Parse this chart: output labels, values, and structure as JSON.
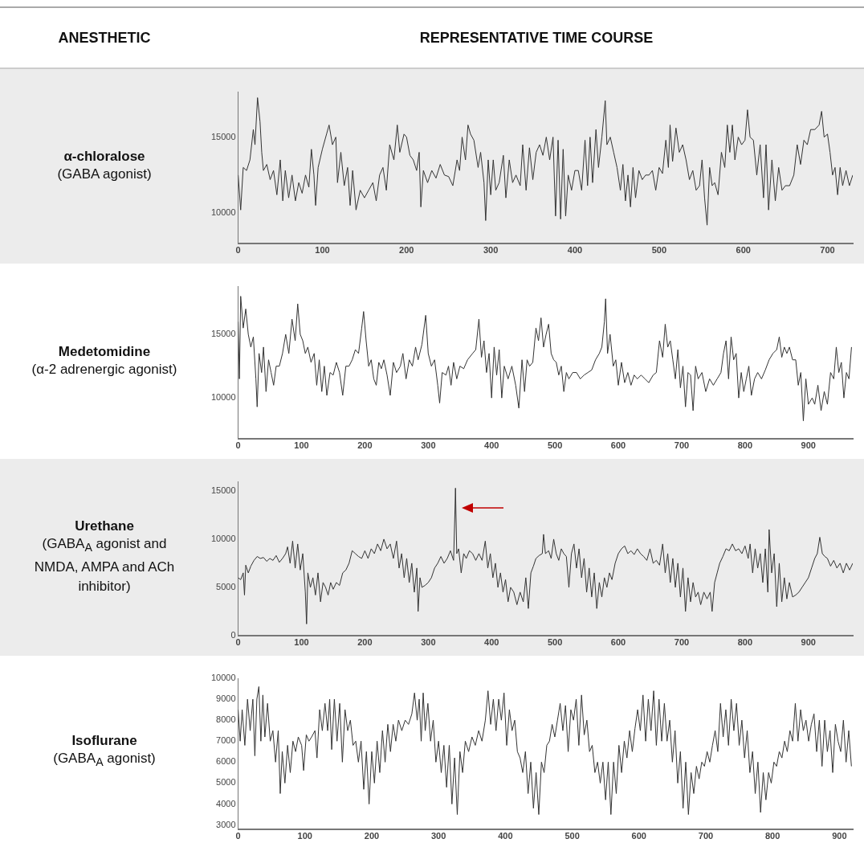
{
  "chart_data": [
    {
      "type": "line",
      "title": "α-chloralose",
      "subtitle": "(GABA agonist)",
      "annotations": [
        "ANESTHETIC",
        "REPRESENTATIVE TIME COURSE"
      ],
      "color": "#333333",
      "xlim": [
        0,
        730
      ],
      "xticks": [
        0,
        100,
        200,
        300,
        400,
        500,
        600,
        700
      ],
      "ylim": [
        8000,
        18000
      ],
      "yticks": [
        10000,
        15000
      ],
      "x": [
        0,
        3,
        6,
        10,
        14,
        18,
        20,
        23,
        26,
        28,
        30,
        34,
        38,
        42,
        46,
        50,
        53,
        56,
        60,
        64,
        68,
        72,
        76,
        80,
        84,
        87,
        90,
        92,
        95,
        100,
        105,
        108,
        112,
        116,
        118,
        122,
        126,
        130,
        133,
        136,
        140,
        145,
        150,
        155,
        160,
        164,
        168,
        172,
        176,
        180,
        185,
        189,
        192,
        197,
        200,
        204,
        208,
        212,
        215,
        217,
        220,
        225,
        230,
        235,
        240,
        245,
        250,
        255,
        260,
        263,
        266,
        270,
        273,
        276,
        280,
        285,
        288,
        292,
        294,
        297,
        300,
        303,
        306,
        310,
        315,
        318,
        322,
        326,
        330,
        335,
        338,
        342,
        346,
        350,
        354,
        358,
        362,
        366,
        370,
        374,
        377,
        380,
        383,
        386,
        389,
        392,
        396,
        400,
        404,
        408,
        412,
        415,
        418,
        421,
        425,
        428,
        432,
        436,
        438,
        442,
        446,
        450,
        454,
        457,
        460,
        463,
        466,
        469,
        472,
        476,
        480,
        484,
        488,
        492,
        496,
        500,
        504,
        508,
        511,
        513,
        516,
        520,
        524,
        528,
        532,
        536,
        540,
        544,
        548,
        551,
        554,
        557,
        560,
        563,
        566,
        570,
        574,
        578,
        581,
        584,
        587,
        590,
        594,
        598,
        602,
        605,
        608,
        612,
        616,
        620,
        624,
        627,
        630,
        634,
        638,
        642,
        646,
        650,
        655,
        660,
        664,
        668,
        672,
        676,
        680,
        685,
        690,
        693,
        696,
        700,
        703,
        706,
        709,
        712,
        715,
        718,
        722,
        726,
        730
      ],
      "values": [
        12500,
        10200,
        13000,
        12800,
        13500,
        15500,
        14500,
        17600,
        16000,
        14000,
        12800,
        13200,
        12200,
        12800,
        11200,
        13500,
        10800,
        12800,
        11000,
        12500,
        10800,
        12000,
        11300,
        12500,
        11700,
        14200,
        12500,
        10500,
        13000,
        14200,
        15200,
        15800,
        14500,
        15000,
        12000,
        14000,
        11800,
        13000,
        10500,
        12800,
        10200,
        11500,
        11000,
        11500,
        12000,
        10800,
        12500,
        13000,
        11500,
        14500,
        13500,
        15800,
        14000,
        15200,
        15000,
        13800,
        13500,
        12800,
        14000,
        10400,
        12800,
        12000,
        12800,
        12300,
        13200,
        12500,
        12400,
        11800,
        13500,
        12800,
        15000,
        13500,
        15800,
        15200,
        14800,
        13000,
        14000,
        12000,
        9500,
        13500,
        11200,
        13500,
        11500,
        12000,
        13800,
        11000,
        13500,
        12000,
        12500,
        11800,
        14500,
        11500,
        14300,
        12200,
        14000,
        14500,
        13800,
        15000,
        13500,
        15000,
        9800,
        14800,
        9600,
        14200,
        9800,
        12500,
        11500,
        12800,
        12800,
        11500,
        14800,
        11800,
        15000,
        12000,
        15500,
        13000,
        15000,
        17400,
        14500,
        15000,
        14000,
        13000,
        11500,
        13200,
        10800,
        12500,
        10400,
        13000,
        11000,
        12800,
        12200,
        12500,
        12500,
        12800,
        11500,
        13000,
        12600,
        14800,
        13000,
        15800,
        13400,
        15600,
        14000,
        14500,
        13500,
        12200,
        12800,
        11500,
        11800,
        13500,
        11000,
        9200,
        13000,
        11800,
        12000,
        11200,
        14000,
        13000,
        15800,
        14000,
        15800,
        13500,
        15000,
        14500,
        14800,
        16800,
        15000,
        14800,
        12500,
        14500,
        11000,
        14500,
        10200,
        13500,
        10800,
        13000,
        11500,
        11800,
        11800,
        12500,
        14500,
        13200,
        14800,
        14500,
        15500,
        15500,
        15800,
        16700,
        15000,
        15200,
        14000,
        12500,
        13000,
        11200,
        13000,
        11800,
        12800,
        11800,
        12500
      ]
    },
    {
      "type": "line",
      "title": "Medetomidine",
      "subtitle": "(α-2 adrenergic agonist)",
      "color": "#333333",
      "xlim": [
        0,
        970
      ],
      "xticks": [
        0,
        100,
        200,
        300,
        400,
        500,
        600,
        700,
        800,
        900
      ],
      "ylim": [
        6800,
        18800
      ],
      "yticks": [
        10000,
        15000
      ],
      "x": [
        0,
        2,
        4,
        8,
        12,
        16,
        20,
        24,
        28,
        30,
        33,
        37,
        40,
        44,
        48,
        52,
        56,
        60,
        65,
        70,
        75,
        80,
        85,
        90,
        94,
        98,
        102,
        106,
        110,
        115,
        120,
        124,
        128,
        132,
        136,
        140,
        145,
        150,
        155,
        160,
        165,
        170,
        175,
        180,
        185,
        190,
        195,
        198,
        202,
        206,
        210,
        214,
        218,
        222,
        226,
        230,
        235,
        240,
        245,
        250,
        256,
        260,
        265,
        270,
        275,
        280,
        284,
        290,
        296,
        300,
        305,
        310,
        315,
        318,
        322,
        328,
        332,
        336,
        340,
        345,
        350,
        356,
        362,
        370,
        375,
        380,
        384,
        388,
        392,
        396,
        400,
        404,
        408,
        412,
        416,
        420,
        426,
        432,
        438,
        443,
        448,
        452,
        456,
        460,
        465,
        470,
        474,
        478,
        482,
        486,
        490,
        494,
        498,
        502,
        506,
        510,
        514,
        518,
        522,
        528,
        534,
        540,
        546,
        552,
        558,
        564,
        570,
        574,
        578,
        580,
        583,
        587,
        592,
        596,
        600,
        605,
        610,
        615,
        620,
        625,
        630,
        636,
        642,
        648,
        655,
        660,
        665,
        670,
        674,
        678,
        682,
        686,
        690,
        694,
        698,
        702,
        706,
        710,
        714,
        718,
        722,
        726,
        732,
        738,
        744,
        750,
        756,
        762,
        766,
        770,
        774,
        778,
        782,
        786,
        790,
        794,
        798,
        802,
        806,
        810,
        815,
        820,
        826,
        832,
        838,
        844,
        850,
        854,
        858,
        862,
        866,
        870,
        875,
        880,
        884,
        888,
        892,
        896,
        900,
        906,
        910,
        915,
        920,
        925,
        930,
        935,
        940,
        944,
        948,
        952,
        956,
        960,
        964,
        968
      ],
      "values": [
        16000,
        11500,
        18000,
        15500,
        17000,
        15000,
        14000,
        14800,
        11500,
        9300,
        13500,
        12000,
        14000,
        10500,
        13000,
        12000,
        11000,
        12500,
        12500,
        13500,
        15000,
        13500,
        16200,
        14500,
        17400,
        15000,
        14500,
        13500,
        14000,
        12800,
        13500,
        11000,
        13000,
        10500,
        12500,
        10200,
        12000,
        11800,
        12800,
        12000,
        10200,
        12500,
        12500,
        13000,
        13800,
        13500,
        15500,
        16800,
        14500,
        12500,
        13000,
        11500,
        11000,
        12800,
        12300,
        13000,
        11800,
        10200,
        12800,
        12000,
        12500,
        13500,
        11500,
        13000,
        12500,
        14000,
        13000,
        14200,
        16500,
        13500,
        12500,
        13000,
        11000,
        9600,
        12000,
        11800,
        12500,
        11000,
        12800,
        11500,
        12500,
        12300,
        13000,
        13500,
        13800,
        16200,
        13200,
        14500,
        12000,
        13500,
        10000,
        14000,
        11800,
        13800,
        10000,
        12500,
        11500,
        12500,
        11000,
        9200,
        13000,
        10500,
        13000,
        12500,
        12800,
        15500,
        14500,
        16300,
        14000,
        15000,
        15800,
        13500,
        13000,
        12800,
        11800,
        12500,
        10500,
        12000,
        11500,
        12000,
        12000,
        11500,
        11800,
        12000,
        12200,
        13000,
        13500,
        14000,
        16000,
        17800,
        13500,
        15000,
        12500,
        13000,
        11000,
        12800,
        11200,
        12000,
        11000,
        11800,
        11500,
        11800,
        11500,
        11200,
        11800,
        12000,
        14500,
        13200,
        15800,
        14000,
        14500,
        13000,
        11500,
        13800,
        10800,
        12500,
        9300,
        12000,
        11800,
        9000,
        12500,
        11500,
        12000,
        10500,
        11500,
        11000,
        11500,
        12000,
        13500,
        14500,
        11500,
        14800,
        13000,
        13500,
        10000,
        12000,
        10500,
        11500,
        12500,
        10200,
        11500,
        12000,
        11500,
        12200,
        13000,
        13500,
        13800,
        14800,
        13200,
        14000,
        13500,
        14000,
        13000,
        13000,
        11000,
        12000,
        8200,
        11500,
        9500,
        10000,
        9500,
        11000,
        9000,
        10500,
        9500,
        12000,
        11500,
        14000,
        12000,
        12800,
        10000,
        12000,
        11500,
        14000
      ]
    },
    {
      "type": "line",
      "title": "Urethane",
      "subtitle": "(GABA$_{A}$ agonist and NMDA, AMPA and ACh inhibitor)",
      "color": "#333333",
      "xlim": [
        0,
        970
      ],
      "xticks": [
        0,
        100,
        200,
        300,
        400,
        500,
        600,
        700,
        800,
        900
      ],
      "ylim": [
        0,
        16000
      ],
      "yticks": [
        0,
        5000,
        10000,
        15000
      ],
      "x": [
        0,
        4,
        8,
        10,
        12,
        16,
        20,
        25,
        30,
        35,
        40,
        45,
        50,
        55,
        60,
        65,
        70,
        75,
        78,
        82,
        86,
        90,
        94,
        98,
        102,
        106,
        108,
        110,
        114,
        118,
        122,
        126,
        130,
        134,
        138,
        142,
        146,
        150,
        155,
        160,
        165,
        170,
        175,
        180,
        185,
        190,
        195,
        200,
        205,
        210,
        215,
        220,
        225,
        230,
        235,
        240,
        245,
        250,
        254,
        258,
        262,
        266,
        270,
        274,
        278,
        282,
        284,
        287,
        290,
        295,
        300,
        305,
        310,
        315,
        320,
        325,
        330,
        335,
        340,
        342,
        343,
        345,
        348,
        352,
        356,
        360,
        365,
        370,
        375,
        380,
        385,
        390,
        394,
        398,
        402,
        406,
        410,
        414,
        418,
        422,
        426,
        430,
        435,
        440,
        445,
        450,
        454,
        458,
        462,
        466,
        470,
        475,
        480,
        482,
        485,
        490,
        494,
        498,
        502,
        506,
        510,
        514,
        518,
        522,
        526,
        530,
        534,
        538,
        542,
        546,
        550,
        554,
        558,
        562,
        566,
        570,
        574,
        578,
        582,
        586,
        590,
        595,
        600,
        605,
        610,
        615,
        620,
        625,
        630,
        635,
        640,
        645,
        650,
        655,
        660,
        665,
        670,
        674,
        678,
        682,
        686,
        690,
        694,
        698,
        702,
        706,
        710,
        714,
        718,
        722,
        726,
        730,
        735,
        740,
        745,
        748,
        752,
        756,
        760,
        765,
        770,
        775,
        780,
        785,
        790,
        795,
        800,
        805,
        808,
        812,
        816,
        820,
        824,
        828,
        832,
        836,
        838,
        842,
        846,
        850,
        854,
        858,
        862,
        866,
        870,
        875,
        880,
        885,
        890,
        895,
        900,
        905,
        910,
        914,
        918,
        922,
        926,
        930,
        935,
        940,
        945,
        950,
        955,
        960,
        965,
        970
      ],
      "values": [
        6000,
        5800,
        6500,
        4200,
        7300,
        6500,
        7200,
        7800,
        8200,
        8000,
        8100,
        7700,
        8000,
        7800,
        8300,
        7600,
        8000,
        8500,
        9200,
        7500,
        9800,
        7000,
        9500,
        6800,
        8500,
        4500,
        1200,
        6500,
        5000,
        6000,
        4200,
        6500,
        3500,
        5500,
        5000,
        4200,
        5500,
        4800,
        5500,
        5200,
        6500,
        6800,
        7500,
        8800,
        8500,
        8200,
        8000,
        8800,
        8000,
        9000,
        8500,
        9500,
        8800,
        10000,
        9000,
        9500,
        8000,
        9800,
        7000,
        8500,
        6000,
        8000,
        5500,
        7500,
        4500,
        7000,
        2500,
        6000,
        5000,
        5200,
        5500,
        6000,
        7000,
        7500,
        8200,
        7500,
        8000,
        8800,
        7800,
        12500,
        15300,
        8500,
        9000,
        6500,
        8500,
        8000,
        8800,
        8500,
        7800,
        8500,
        7800,
        9800,
        7000,
        8500,
        6000,
        7500,
        5000,
        6500,
        4500,
        5800,
        3500,
        5000,
        4500,
        3200,
        4500,
        3500,
        6000,
        2800,
        6500,
        7200,
        8000,
        8300,
        8500,
        10500,
        8500,
        8800,
        8000,
        10000,
        8500,
        7800,
        9000,
        8500,
        8200,
        5000,
        8500,
        9500,
        7000,
        9000,
        6000,
        8000,
        4500,
        7000,
        4000,
        6500,
        2800,
        5500,
        4000,
        6000,
        5000,
        6500,
        5800,
        7500,
        8500,
        9000,
        9300,
        8500,
        8800,
        8400,
        9000,
        8500,
        8200,
        7800,
        9000,
        7500,
        7800,
        7300,
        9500,
        6500,
        8500,
        5500,
        8000,
        5000,
        7500,
        4000,
        7000,
        2500,
        6000,
        3500,
        5500,
        4000,
        4500,
        3200,
        4500,
        3800,
        4500,
        2500,
        5500,
        6500,
        7500,
        8200,
        9000,
        8800,
        9500,
        8800,
        9000,
        8500,
        9300,
        8000,
        9500,
        6500,
        9000,
        7000,
        8500,
        5500,
        9000,
        4500,
        11000,
        6500,
        8500,
        3000,
        7500,
        3500,
        6000,
        3800,
        5500,
        4000,
        4200,
        4500,
        5000,
        5500,
        6000,
        7000,
        8000,
        8500,
        10200,
        8500,
        8200,
        8000,
        7200,
        7800,
        7000,
        7500,
        6500,
        7500,
        6800,
        7500
      ]
    },
    {
      "type": "line",
      "title": "Isoflurane",
      "subtitle": "(GABA$_{A}$ agonist)",
      "color": "#333333",
      "xlim": [
        0,
        920
      ],
      "xticks": [
        0,
        100,
        200,
        300,
        400,
        500,
        600,
        700,
        800,
        900
      ],
      "ylim": [
        2800,
        10000
      ],
      "yticks": [
        3000,
        4000,
        5000,
        6000,
        7000,
        8000,
        9000,
        10000
      ],
      "x": [
        0,
        3,
        6,
        10,
        14,
        18,
        22,
        25,
        28,
        31,
        34,
        37,
        40,
        44,
        48,
        52,
        56,
        60,
        63,
        66,
        70,
        74,
        78,
        82,
        86,
        90,
        95,
        98,
        102,
        106,
        110,
        115,
        118,
        122,
        126,
        130,
        134,
        137,
        140,
        144,
        148,
        152,
        156,
        160,
        164,
        168,
        172,
        176,
        180,
        184,
        188,
        192,
        196,
        200,
        204,
        208,
        212,
        216,
        220,
        224,
        228,
        232,
        236,
        240,
        245,
        250,
        255,
        260,
        264,
        268,
        271,
        274,
        277,
        280,
        284,
        288,
        292,
        296,
        300,
        304,
        308,
        312,
        316,
        320,
        324,
        328,
        332,
        336,
        340,
        345,
        350,
        355,
        360,
        365,
        370,
        374,
        378,
        382,
        386,
        390,
        394,
        398,
        402,
        406,
        410,
        414,
        418,
        422,
        426,
        430,
        434,
        438,
        442,
        446,
        450,
        454,
        458,
        462,
        466,
        470,
        474,
        478,
        482,
        486,
        490,
        494,
        498,
        502,
        506,
        510,
        514,
        518,
        522,
        526,
        530,
        534,
        538,
        542,
        546,
        550,
        554,
        558,
        562,
        566,
        570,
        574,
        578,
        582,
        586,
        590,
        594,
        598,
        602,
        606,
        610,
        614,
        618,
        622,
        626,
        630,
        634,
        638,
        642,
        646,
        650,
        654,
        658,
        662,
        666,
        670,
        674,
        678,
        682,
        686,
        690,
        694,
        698,
        702,
        706,
        710,
        714,
        718,
        722,
        726,
        730,
        734,
        738,
        742,
        746,
        750,
        754,
        758,
        762,
        766,
        770,
        774,
        778,
        782,
        786,
        790,
        794,
        798,
        802,
        806,
        810,
        814,
        818,
        822,
        826,
        830,
        834,
        838,
        842,
        846,
        850,
        854,
        858,
        862,
        866,
        870,
        874,
        878,
        882,
        886,
        890,
        894,
        898,
        902,
        906,
        910,
        914,
        918
      ],
      "values": [
        8500,
        7000,
        8500,
        6800,
        9000,
        7500,
        9000,
        6300,
        9000,
        9600,
        7000,
        9200,
        7200,
        8800,
        7000,
        7500,
        6000,
        7500,
        4500,
        6500,
        5000,
        6800,
        5500,
        7000,
        6500,
        7200,
        6800,
        5600,
        7300,
        7000,
        7200,
        7500,
        6200,
        8500,
        7500,
        8800,
        7500,
        9000,
        6600,
        9000,
        7000,
        8800,
        6000,
        8500,
        7500,
        8000,
        6800,
        7000,
        6000,
        7000,
        4700,
        6500,
        4000,
        6500,
        5000,
        7000,
        5500,
        7500,
        6000,
        7800,
        6500,
        7800,
        7000,
        8000,
        7500,
        8000,
        7800,
        8300,
        9300,
        8000,
        9000,
        7000,
        9300,
        7500,
        8800,
        7000,
        8000,
        6000,
        7000,
        5500,
        6800,
        4800,
        6800,
        4000,
        6200,
        3500,
        6500,
        5500,
        7000,
        6500,
        7200,
        6800,
        7500,
        7000,
        8000,
        9400,
        7800,
        9000,
        7500,
        9000,
        8000,
        9300,
        6800,
        8500,
        7500,
        8000,
        6500,
        6200,
        5500,
        6500,
        4500,
        6000,
        3800,
        5500,
        3500,
        6000,
        5500,
        6800,
        7000,
        7800,
        7200,
        8000,
        8800,
        7500,
        8700,
        6500,
        8500,
        8000,
        9000,
        6800,
        9200,
        7300,
        8000,
        6500,
        6800,
        5500,
        6000,
        5000,
        6000,
        4200,
        6000,
        3500,
        6000,
        4500,
        6800,
        5500,
        7000,
        6200,
        7500,
        6500,
        7600,
        8500,
        7500,
        9200,
        7000,
        9000,
        7500,
        9400,
        6800,
        9000,
        7000,
        8800,
        7000,
        8000,
        6000,
        7500,
        5000,
        6500,
        3800,
        6000,
        3500,
        5500,
        4500,
        5800,
        5200,
        6000,
        5800,
        6500,
        6000,
        6800,
        7500,
        6500,
        8800,
        7200,
        8500,
        6800,
        9000,
        7500,
        8800,
        6800,
        8000,
        6200,
        7500,
        5500,
        6500,
        4500,
        6000,
        3600,
        5500,
        4200,
        5500,
        5000,
        6000,
        5800,
        6500,
        6200,
        7000,
        6500,
        7500,
        7000,
        8800,
        7000,
        8500,
        7500,
        8000,
        7000,
        7800,
        8300,
        6500,
        8000,
        5800,
        8000,
        6500,
        7500,
        5500,
        7800,
        7000,
        6500,
        8000,
        6000,
        7500,
        5800
      ]
    }
  ]
}
